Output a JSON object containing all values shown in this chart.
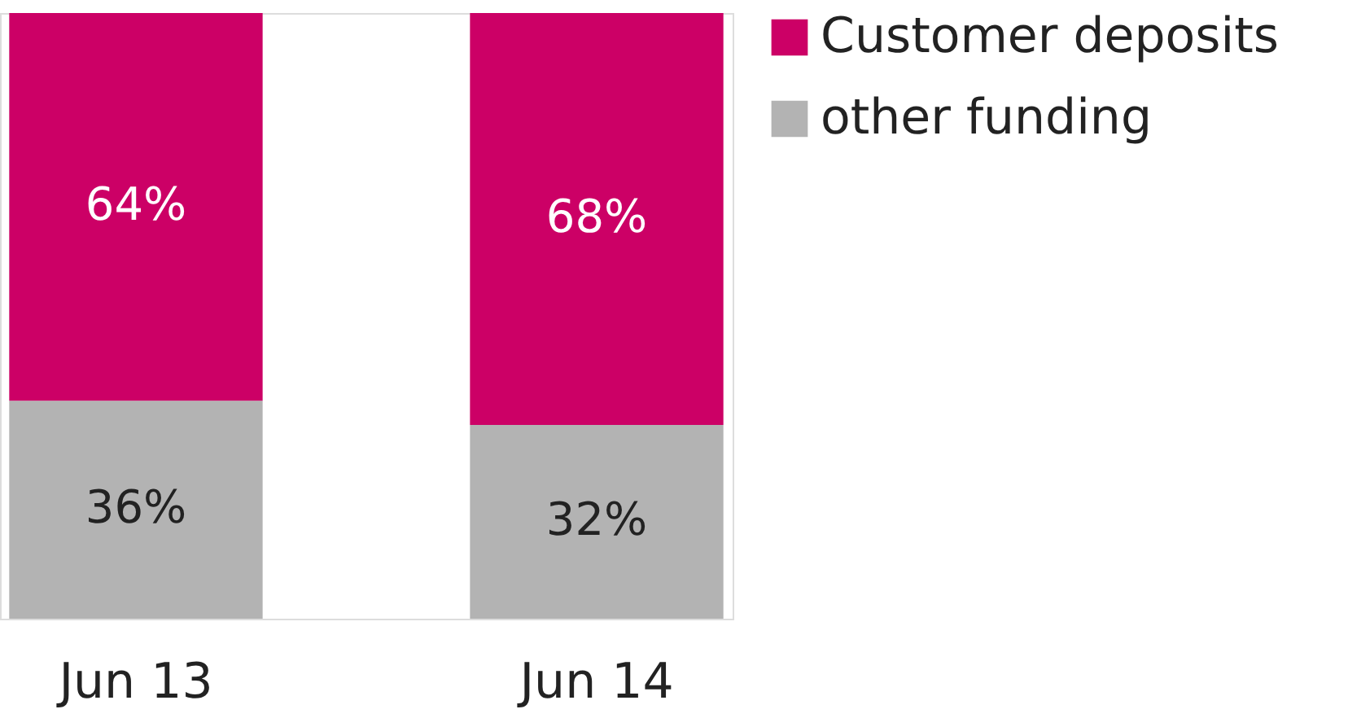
{
  "chart_data": {
    "type": "bar",
    "stacked": true,
    "categories": [
      "Jun 13",
      "Jun 14"
    ],
    "series": [
      {
        "name": "other funding",
        "color": "#b3b3b3",
        "values": [
          36,
          32
        ],
        "value_labels": [
          "36%",
          "32%"
        ]
      },
      {
        "name": "Customer deposits",
        "color": "#cc0066",
        "values": [
          64,
          68
        ],
        "value_labels": [
          "64%",
          "68%"
        ]
      }
    ],
    "legend": "top right"
  }
}
